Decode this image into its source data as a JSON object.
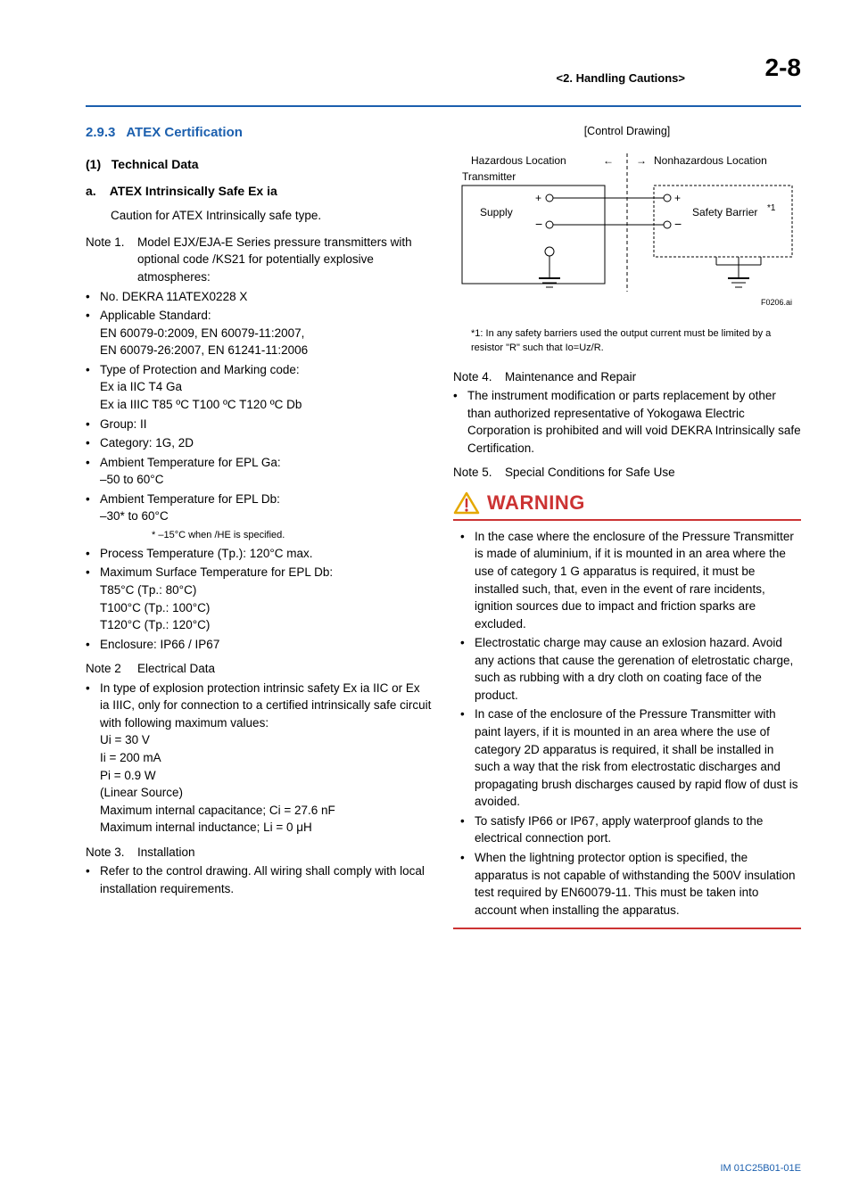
{
  "header": {
    "chapter": "<2.  Handling Cautions>",
    "page_no": "2-8"
  },
  "section": {
    "number": "2.9.3",
    "title": "ATEX Certification"
  },
  "subsection_1": {
    "label": "(1)",
    "title": "Technical Data"
  },
  "sub_a": {
    "label": "a.",
    "title": "ATEX Intrinsically Safe Ex ia",
    "caution": "Caution for ATEX Intrinsically safe type."
  },
  "note1": {
    "label": "Note 1.",
    "lead": "Model EJX/EJA-E Series pressure transmitters with optional code /KS21 for potentially explosive atmospheres:",
    "bullets": [
      "No. DEKRA 11ATEX0228 X",
      "Applicable Standard:\nEN 60079-0:2009,  EN 60079-11:2007,\nEN 60079-26:2007, EN 61241-11:2006",
      "Type of Protection and Marking code:\nEx ia IIC T4 Ga\nEx ia IIIC T85 ºC  T100 ºC  T120 ºC Db",
      "Group: II",
      "Category: 1G, 2D",
      "Ambient Temperature for EPL Ga:\n–50 to 60°C",
      "Ambient Temperature for EPL Db:\n–30* to 60°C",
      "Process Temperature (Tp.): 120°C max.",
      "Maximum Surface Temperature for EPL Db:\nT85°C (Tp.: 80°C)\nT100°C (Tp.: 100°C)\nT120°C (Tp.: 120°C)",
      "Enclosure: IP66 / IP67"
    ],
    "he_note": "*  –15°C when /HE is specified."
  },
  "note2": {
    "label": "Note 2",
    "title": "Electrical Data",
    "bullets": [
      "In type of explosion protection intrinsic safety Ex ia IIC or Ex ia IIIC, only for connection to a certified intrinsically safe circuit with following maximum values:\nUi = 30 V\nIi = 200 mA\nPi = 0.9 W\n(Linear Source)\nMaximum internal capacitance; Ci = 27.6 nF\nMaximum internal inductance; Li = 0 μH"
    ]
  },
  "note3": {
    "label": "Note 3.",
    "title": "Installation",
    "bullets": [
      "Refer to the control drawing. All wiring shall comply with local installation requirements."
    ]
  },
  "drawing": {
    "title": "[Control Drawing]",
    "haz": "Hazardous Location",
    "nonhaz": "Nonhazardous Location",
    "transmitter": "Transmitter",
    "supply": "Supply",
    "barrier": "Safety Barrier",
    "star_sup": "*1",
    "fig_id": "F0206.ai",
    "footnote": "*1: In any safety barriers used the output current must be limited by a resistor \"R\" such that Io=Uz/R."
  },
  "note4": {
    "label": "Note 4.",
    "title": "Maintenance and Repair",
    "bullets": [
      "The instrument modification or parts replacement by other than authorized representative of Yokogawa Electric Corporation is prohibited and will void DEKRA Intrinsically safe Certification."
    ]
  },
  "note5": {
    "label": "Note 5.",
    "title": "Special Conditions for Safe Use"
  },
  "warning": {
    "title": "WARNING",
    "bullets": [
      "In the case where the enclosure of the Pressure Transmitter is made of aluminium, if it is mounted in an area where the use of category 1 G apparatus is required, it must be installed such, that, even in the event of rare incidents, ignition sources due to impact and friction sparks are excluded.",
      "Electrostatic charge may cause an exlosion hazard.  Avoid any actions that cause the gerenation of eletrostatic charge, such as rubbing with a dry cloth on coating face of the product.",
      "In case of the enclosure of the Pressure Transmitter with paint layers, if it is mounted in an area where the use of category 2D apparatus is required, it shall be installed in such a way that the risk from electrostatic discharges and propagating brush discharges caused by rapid flow of dust is avoided.",
      "To satisfy IP66 or IP67,  apply waterproof glands to the electrical connection port.",
      "When the lightning protector option is specified, the apparatus is not capable of withstanding the 500V insulation test required by EN60079-11. This must be taken into account when installing the apparatus."
    ]
  },
  "footer": {
    "code": "IM 01C25B01-01E"
  },
  "colors": {
    "blue": "#1b5fae",
    "red": "#c33"
  }
}
